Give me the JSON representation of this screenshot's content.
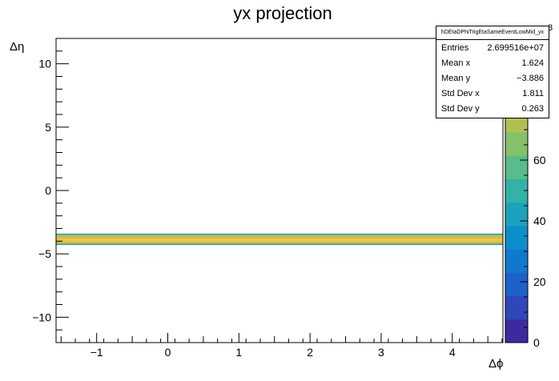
{
  "chart_data": {
    "type": "heatmap",
    "title": "yx projection",
    "xlabel": "Δϕ",
    "ylabel": "Δη",
    "xlim": [
      -1.5708,
      4.7124
    ],
    "ylim": [
      -12,
      12
    ],
    "x_ticks": [
      -1,
      0,
      1,
      2,
      3,
      4
    ],
    "y_ticks": [
      -10,
      -5,
      0,
      5,
      10
    ],
    "band": {
      "y_range": [
        -4.3,
        -3.4
      ],
      "x_range": [
        -1.5708,
        4.7124
      ]
    },
    "band_rows": [
      {
        "y0": -4.3,
        "y1": -4.2,
        "level": 40
      },
      {
        "y0": -4.2,
        "y1": -4.0,
        "level": 78
      },
      {
        "y0": -4.0,
        "y1": -3.8,
        "level": 88
      },
      {
        "y0": -3.8,
        "y1": -3.6,
        "level": 82
      },
      {
        "y0": -3.6,
        "y1": -3.5,
        "level": 70
      },
      {
        "y0": -3.5,
        "y1": -3.4,
        "level": 40
      }
    ],
    "palette_colors": [
      "#3d2a9e",
      "#2f47b9",
      "#1c61c8",
      "#0e79cf",
      "#0b8fcb",
      "#1ba3bd",
      "#33b2a6",
      "#58bd8a",
      "#85c16b",
      "#b1bf52",
      "#d9b944",
      "#f4c23b",
      "#f9e01e"
    ],
    "colorbar": {
      "range": [
        0,
        100
      ],
      "ticks": [
        0,
        20,
        40,
        60
      ],
      "exponent": "3"
    },
    "stats": {
      "name": "hDEtaDPhiTrigEtaSameEventLowMid_yx",
      "entries_label": "Entries",
      "entries": "2.699516e+07",
      "meanx_label": "Mean x",
      "meanx": "1.624",
      "meany_label": "Mean y",
      "meany": "−3.886",
      "stdx_label": "Std Dev x",
      "stdx": "1.811",
      "stdy_label": "Std Dev y",
      "stdy": "0.263"
    }
  }
}
